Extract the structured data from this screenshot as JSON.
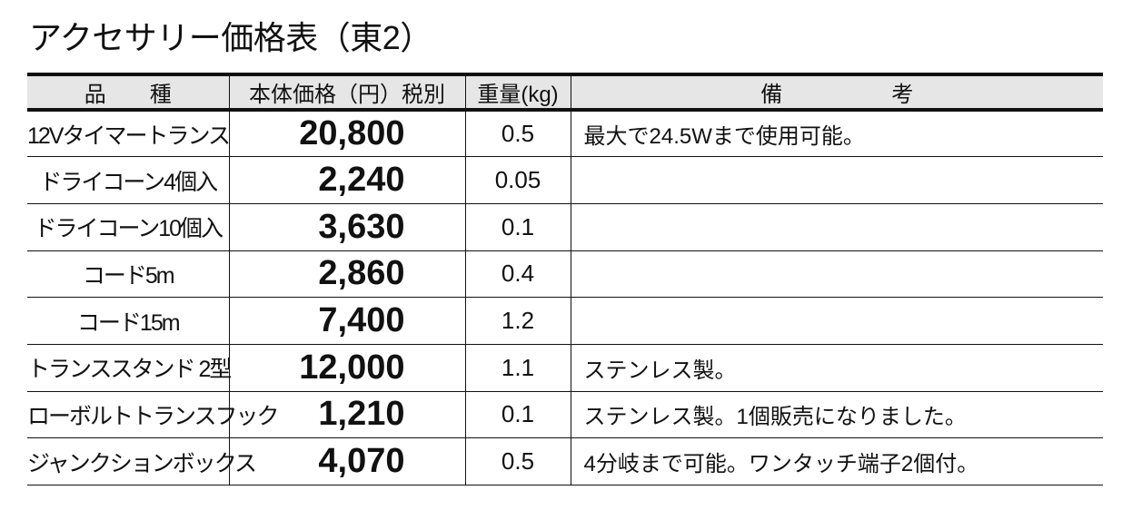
{
  "title": "アクセサリー価格表（東2）",
  "headers": [
    "品　　種",
    "本体価格（円）税別",
    "重量(kg)",
    "備　　　　　考"
  ],
  "rows": [
    {
      "name": "12Vタイマートランス",
      "price": "20,800",
      "weight": "0.5",
      "note": "最大で24.5Wまで使用可能。"
    },
    {
      "name": "ドライコーン4個入",
      "price": "2,240",
      "weight": "0.05",
      "note": ""
    },
    {
      "name": "ドライコーン10個入",
      "price": "3,630",
      "weight": "0.1",
      "note": ""
    },
    {
      "name": "コード5m",
      "price": "2,860",
      "weight": "0.4",
      "note": ""
    },
    {
      "name": "コード15m",
      "price": "7,400",
      "weight": "1.2",
      "note": ""
    },
    {
      "name": "トランススタンド 2型",
      "price": "12,000",
      "weight": "1.1",
      "note": "ステンレス製。"
    },
    {
      "name": "ローボルトトランスフック",
      "price": "1,210",
      "weight": "0.1",
      "note": "ステンレス製。1個販売になりました。"
    },
    {
      "name": "ジャンクションボックス",
      "price": "4,070",
      "weight": "0.5",
      "note": "4分岐まで可能。ワンタッチ端子2個付。"
    }
  ]
}
